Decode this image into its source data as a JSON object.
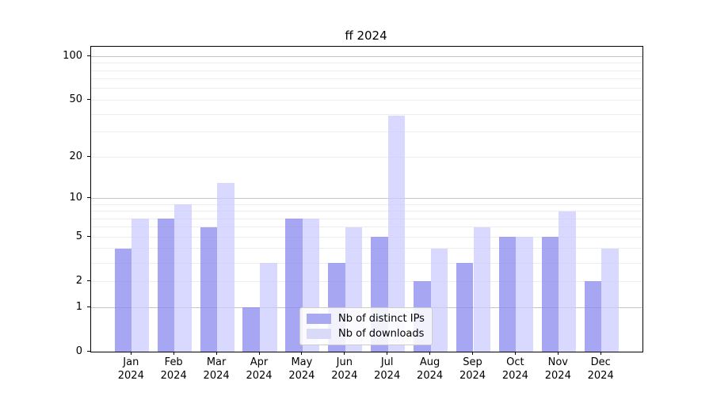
{
  "title": "ff 2024",
  "legend": {
    "items": [
      {
        "label": "Nb of distinct IPs"
      },
      {
        "label": "Nb of downloads"
      }
    ]
  },
  "chart_data": {
    "type": "bar",
    "title": "ff 2024",
    "categories": [
      "Jan 2024",
      "Feb 2024",
      "Mar 2024",
      "Apr 2024",
      "May 2024",
      "Jun 2024",
      "Jul 2024",
      "Aug 2024",
      "Sep 2024",
      "Oct 2024",
      "Nov 2024",
      "Dec 2024"
    ],
    "category_month_names": [
      "Jan",
      "Feb",
      "Mar",
      "Apr",
      "May",
      "Jun",
      "Jul",
      "Aug",
      "Sep",
      "Oct",
      "Nov",
      "Dec"
    ],
    "category_year": "2024",
    "series": [
      {
        "name": "Nb of distinct IPs",
        "color": "rgba(136,136,238,0.75)",
        "solid_color": "#a9a9f2",
        "values": [
          4,
          7,
          6,
          1,
          7,
          3,
          5,
          2,
          3,
          5,
          5,
          2
        ]
      },
      {
        "name": "Nb of downloads",
        "color": "rgba(204,204,255,0.75)",
        "solid_color": "#d9d9f8",
        "values": [
          7,
          9,
          13,
          3,
          7,
          6,
          39,
          4,
          6,
          5,
          8,
          4
        ]
      }
    ],
    "yscale": "log10(value+1)",
    "yticks": [
      0,
      1,
      2,
      5,
      10,
      20,
      50,
      100
    ],
    "ylim": [
      0,
      117
    ],
    "xlabel": "",
    "ylabel": "",
    "grid": {
      "major_at": [
        1,
        10,
        100
      ],
      "minor_at": [
        2,
        3,
        4,
        5,
        6,
        7,
        8,
        9,
        20,
        30,
        40,
        50,
        60,
        70,
        80,
        90
      ],
      "major_color": "#c4c4c4",
      "minor_color": "#ededed"
    },
    "legend_position": "lower center"
  }
}
